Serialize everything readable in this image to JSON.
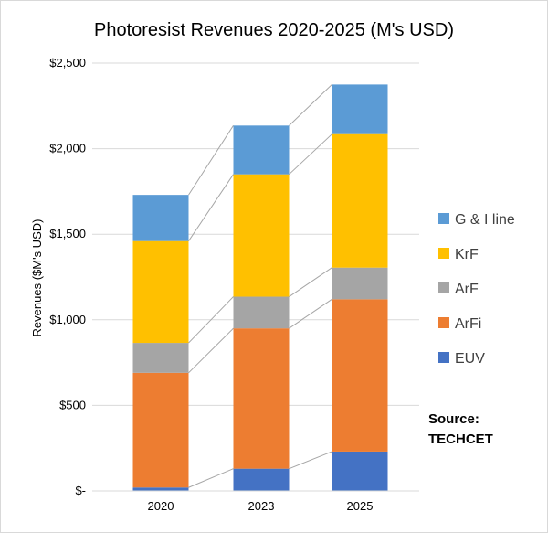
{
  "chart_data": {
    "type": "bar",
    "stacked": true,
    "title": "Photoresist Revenues 2020-2025 (M's USD)",
    "xlabel": "",
    "ylabel": "Revenues ($M's USD)",
    "ylim": [
      0,
      2500
    ],
    "yticks": [
      0,
      500,
      1000,
      1500,
      2000,
      2500
    ],
    "ytick_labels": [
      "$-",
      "$500",
      "$1,000",
      "$1,500",
      "$2,000",
      "$2,500"
    ],
    "categories": [
      "2020",
      "2023",
      "2025"
    ],
    "series": [
      {
        "name": "EUV",
        "color": "#4472C4",
        "values": [
          20,
          130,
          230
        ]
      },
      {
        "name": "ArFi",
        "color": "#ED7D31",
        "values": [
          670,
          820,
          890
        ]
      },
      {
        "name": "ArF",
        "color": "#A5A5A5",
        "values": [
          175,
          185,
          185
        ]
      },
      {
        "name": "KrF",
        "color": "#FFC000",
        "values": [
          595,
          715,
          780
        ]
      },
      {
        "name": "G & I line",
        "color": "#5B9BD5",
        "values": [
          270,
          285,
          290
        ]
      }
    ],
    "grid": true,
    "legend_position": "right",
    "annotation": "Source:\nTECHCET"
  }
}
